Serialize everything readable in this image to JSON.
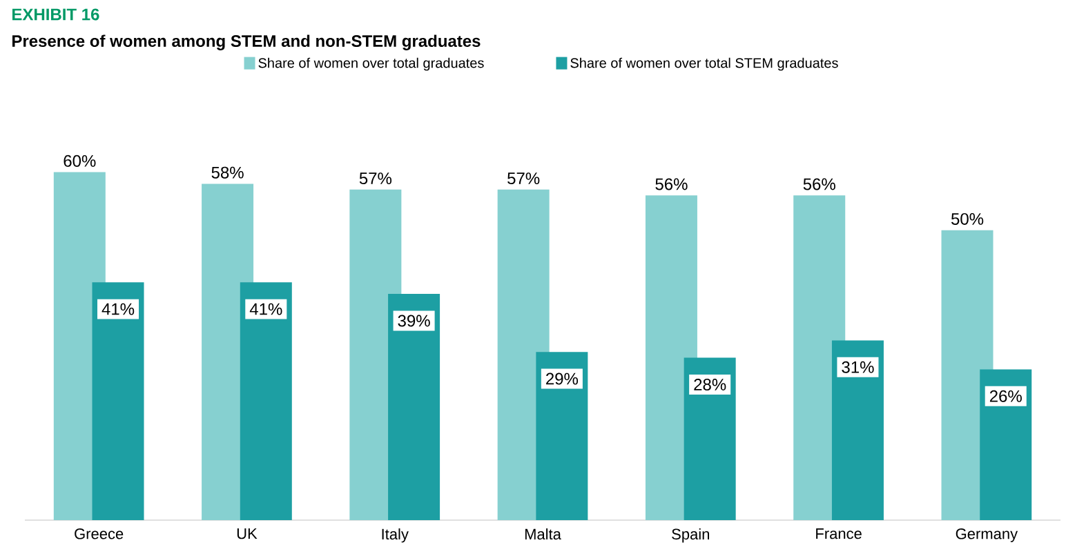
{
  "chart_data": {
    "type": "bar",
    "title": "EXHIBIT 16",
    "subtitle": "Presence of women among STEM and non-STEM graduates",
    "categories": [
      "Greece",
      "UK",
      "Italy",
      "Malta",
      "Spain",
      "France",
      "Germany"
    ],
    "series": [
      {
        "name": "Share of women over total graduates",
        "color": "#86d0d0",
        "values": [
          60,
          58,
          57,
          57,
          56,
          56,
          50
        ],
        "value_labels": [
          "60%",
          "58%",
          "57%",
          "57%",
          "56%",
          "56%",
          "50%"
        ]
      },
      {
        "name": "Share of women over total STEM graduates",
        "color": "#1d9fa3",
        "values": [
          41,
          41,
          39,
          29,
          28,
          31,
          26
        ],
        "value_labels": [
          "41%",
          "41%",
          "39%",
          "29%",
          "28%",
          "31%",
          "26%"
        ]
      }
    ],
    "legend": "top"
  }
}
